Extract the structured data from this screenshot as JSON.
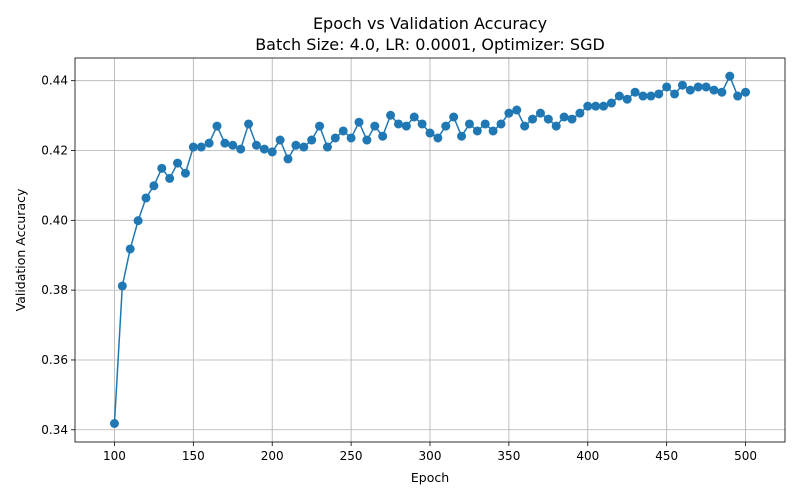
{
  "chart_data": {
    "type": "line",
    "title": "Epoch vs Validation Accuracy",
    "subtitle": "Batch Size: 4.0, LR: 0.0001, Optimizer: SGD",
    "xlabel": "Epoch",
    "ylabel": "Validation Accuracy",
    "xlim": [
      75,
      525
    ],
    "ylim": [
      0.3365,
      0.4465
    ],
    "xticks": [
      100,
      150,
      200,
      250,
      300,
      350,
      400,
      450,
      500
    ],
    "yticks": [
      0.34,
      0.36,
      0.38,
      0.4,
      0.42,
      0.44
    ],
    "ytick_labels": [
      "0.34",
      "0.36",
      "0.38",
      "0.40",
      "0.42",
      "0.44"
    ],
    "grid": true,
    "line_color": "#1f77b4",
    "marker": "circle",
    "x": [
      100,
      105,
      110,
      115,
      120,
      125,
      130,
      135,
      140,
      145,
      150,
      155,
      160,
      165,
      170,
      175,
      180,
      185,
      190,
      195,
      200,
      205,
      210,
      215,
      220,
      225,
      230,
      235,
      240,
      245,
      250,
      255,
      260,
      265,
      270,
      275,
      280,
      285,
      290,
      295,
      300,
      305,
      310,
      315,
      320,
      325,
      330,
      335,
      340,
      345,
      350,
      355,
      360,
      365,
      370,
      375,
      380,
      385,
      390,
      395,
      400,
      405,
      410,
      415,
      420,
      425,
      430,
      435,
      440,
      445,
      450,
      455,
      460,
      465,
      470,
      475,
      480,
      485,
      490,
      495,
      500
    ],
    "y": [
      0.3418,
      0.3812,
      0.3918,
      0.3999,
      0.4064,
      0.4099,
      0.4149,
      0.412,
      0.4164,
      0.4135,
      0.421,
      0.421,
      0.4221,
      0.427,
      0.4221,
      0.4215,
      0.4204,
      0.4276,
      0.4215,
      0.4204,
      0.4196,
      0.423,
      0.4176,
      0.4215,
      0.421,
      0.423,
      0.427,
      0.421,
      0.4236,
      0.4256,
      0.4236,
      0.4281,
      0.423,
      0.427,
      0.4241,
      0.4301,
      0.4276,
      0.427,
      0.4296,
      0.4276,
      0.425,
      0.4236,
      0.427,
      0.4296,
      0.4241,
      0.4276,
      0.4256,
      0.4276,
      0.4256,
      0.4276,
      0.4307,
      0.4316,
      0.427,
      0.429,
      0.4307,
      0.429,
      0.427,
      0.4296,
      0.429,
      0.4307,
      0.4327,
      0.4327,
      0.4327,
      0.4336,
      0.4356,
      0.4347,
      0.4367,
      0.4356,
      0.4356,
      0.4362,
      0.4382,
      0.4362,
      0.4387,
      0.4373,
      0.4382,
      0.4382,
      0.4373,
      0.4367,
      0.4413,
      0.4356,
      0.4367
    ]
  }
}
